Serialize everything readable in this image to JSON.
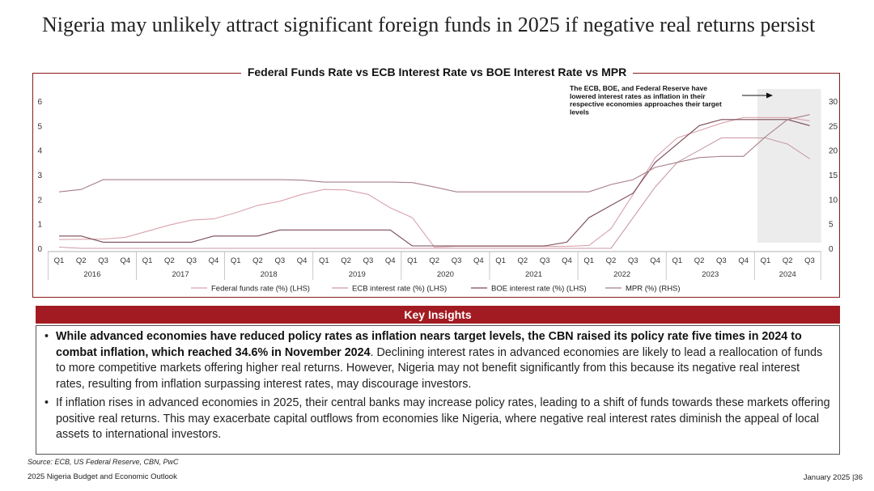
{
  "slide": {
    "title": "Nigeria may unlikely attract significant foreign funds in 2025 if negative real returns persist"
  },
  "colors": {
    "accent_red": "#a31b22",
    "fed": "#d9a3ad",
    "ecb": "#c99aa4",
    "boe": "#7a4a57",
    "mpr": "#a87f89",
    "highlight": "#ececec"
  },
  "chart_data": {
    "type": "line",
    "title": "Federal Funds Rate vs ECB Interest Rate vs BOE Interest Rate vs MPR",
    "quarters": [
      "Q1",
      "Q2",
      "Q3",
      "Q4",
      "Q1",
      "Q2",
      "Q3",
      "Q4",
      "Q1",
      "Q2",
      "Q3",
      "Q4",
      "Q1",
      "Q2",
      "Q3",
      "Q4",
      "Q1",
      "Q2",
      "Q3",
      "Q4",
      "Q1",
      "Q2",
      "Q3",
      "Q4",
      "Q1",
      "Q2",
      "Q3",
      "Q4",
      "Q1",
      "Q2",
      "Q3",
      "Q4",
      "Q1",
      "Q2",
      "Q3"
    ],
    "years": [
      {
        "label": "2016",
        "start": 0,
        "end": 3
      },
      {
        "label": "2017",
        "start": 4,
        "end": 7
      },
      {
        "label": "2018",
        "start": 8,
        "end": 11
      },
      {
        "label": "2019",
        "start": 12,
        "end": 15
      },
      {
        "label": "2020",
        "start": 16,
        "end": 19
      },
      {
        "label": "2021",
        "start": 20,
        "end": 23
      },
      {
        "label": "2022",
        "start": 24,
        "end": 27
      },
      {
        "label": "2023",
        "start": 28,
        "end": 31
      },
      {
        "label": "2024",
        "start": 32,
        "end": 34
      }
    ],
    "y_left": {
      "min": 0,
      "max": 6,
      "ticks": [
        "0",
        "1",
        "2",
        "3",
        "4",
        "5",
        "6"
      ]
    },
    "y_right": {
      "min": 0,
      "max": 30,
      "ticks": [
        "0",
        "5",
        "10",
        "15",
        "20",
        "25",
        "30"
      ]
    },
    "series": [
      {
        "name": "Federal funds rate (%) (LHS)",
        "axis": "left",
        "values": [
          0.36,
          0.37,
          0.38,
          0.45,
          0.7,
          0.95,
          1.15,
          1.2,
          1.45,
          1.75,
          1.92,
          2.2,
          2.4,
          2.38,
          2.2,
          1.65,
          1.25,
          0.05,
          0.08,
          0.08,
          0.08,
          0.08,
          0.08,
          0.08,
          0.12,
          0.8,
          2.2,
          3.7,
          4.5,
          4.8,
          5.1,
          5.33,
          5.33,
          5.33,
          5.2
        ]
      },
      {
        "name": "ECB interest rate (%) (LHS)",
        "axis": "left",
        "values": [
          0.05,
          0,
          0,
          0,
          0,
          0,
          0,
          0,
          0,
          0,
          0,
          0,
          0,
          0,
          0,
          0,
          0,
          0,
          0,
          0,
          0,
          0,
          0,
          0,
          0,
          0,
          1.25,
          2.5,
          3.5,
          4.0,
          4.5,
          4.5,
          4.5,
          4.25,
          3.65
        ]
      },
      {
        "name": "BOE interest rate (%) (LHS)",
        "axis": "left",
        "values": [
          0.5,
          0.5,
          0.25,
          0.25,
          0.25,
          0.25,
          0.25,
          0.5,
          0.5,
          0.5,
          0.75,
          0.75,
          0.75,
          0.75,
          0.75,
          0.75,
          0.1,
          0.1,
          0.1,
          0.1,
          0.1,
          0.1,
          0.1,
          0.25,
          1.25,
          1.75,
          2.25,
          3.5,
          4.25,
          5.0,
          5.25,
          5.25,
          5.25,
          5.25,
          5.0
        ]
      },
      {
        "name": "MPR (%) (RHS)",
        "axis": "right",
        "values": [
          11.5,
          12,
          14,
          14,
          14,
          14,
          14,
          14,
          14,
          14,
          14,
          13.9,
          13.5,
          13.5,
          13.5,
          13.5,
          13.4,
          12.5,
          11.5,
          11.5,
          11.5,
          11.5,
          11.5,
          11.5,
          11.5,
          13,
          14,
          16.5,
          17.5,
          18.5,
          18.75,
          18.75,
          22.75,
          26.25,
          27.25
        ]
      }
    ],
    "annotation": "The ECB, BOE, and Federal Reserve have lowered interest rates as inflation in their respective economies approaches their target levels",
    "highlight_range": [
      32,
      34
    ],
    "legend_position": "bottom",
    "grid": false
  },
  "insights": {
    "heading": "Key Insights",
    "bullet_symbol": "•",
    "point1_bold": "While advanced economies have reduced policy rates as inflation nears target levels, the CBN raised its policy rate five times in 2024 to combat inflation, which reached 34.6% in November 2024",
    "point1_rest": ". Declining interest rates in advanced economies are likely to lead a reallocation of funds to more competitive markets offering higher real returns. However, Nigeria may not benefit significantly from this because its negative real interest rates, resulting from inflation surpassing interest rates, may discourage investors.",
    "point2": "If inflation rises in advanced economies in 2025, their central banks may increase policy rates, leading to a shift of funds towards these markets offering positive real returns. This may exacerbate capital outflows from economies like Nigeria, where negative real interest rates diminish the appeal of local assets to international investors."
  },
  "footer": {
    "source": "Source: ECB, US Federal Reserve, CBN, PwC",
    "doc_title": "2025 Nigeria Budget and Economic Outlook",
    "date_page": "January 2025 |36"
  }
}
